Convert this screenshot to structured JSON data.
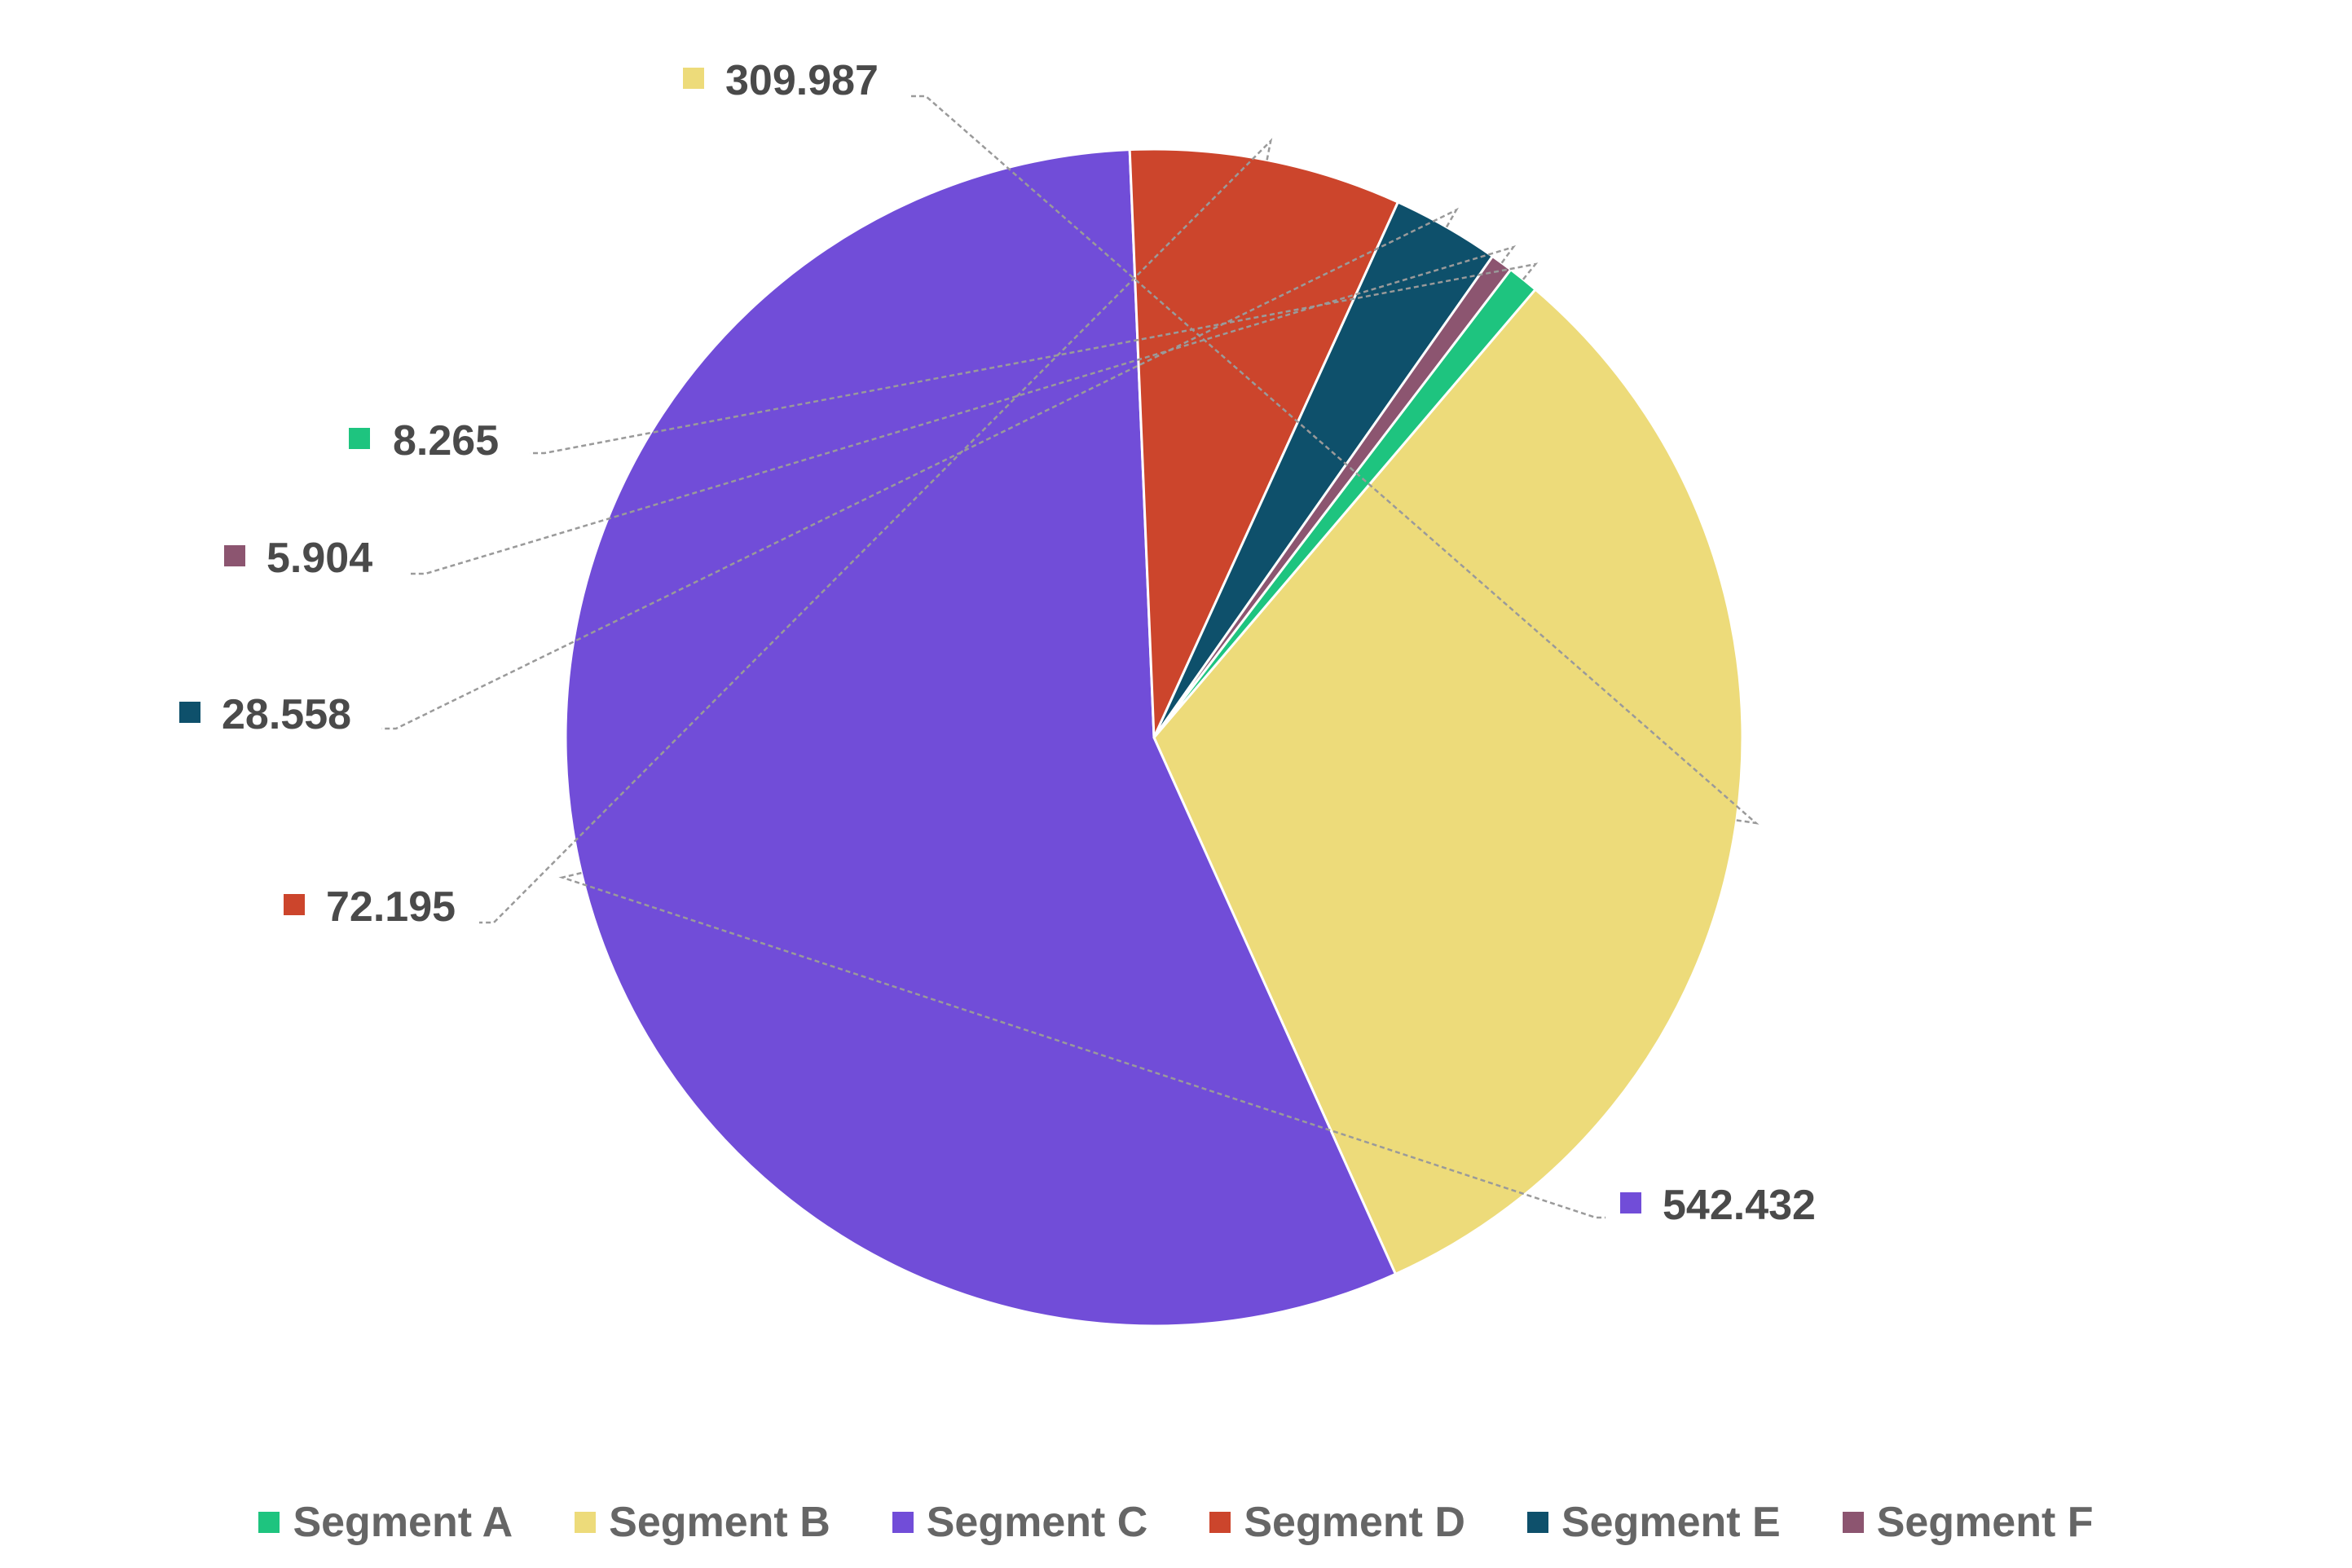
{
  "chart_data": {
    "type": "pie",
    "categories": [
      "Segment A",
      "Segment B",
      "Segment C",
      "Segment D",
      "Segment E",
      "Segment F"
    ],
    "values": [
      8.265,
      309.987,
      542.432,
      72.195,
      28.558,
      5.904
    ],
    "labels": [
      "8.265",
      "309.987",
      "542.432",
      "72.195",
      "28.558",
      "5.904"
    ],
    "colors": [
      "#1ec47f",
      "#eddb7a",
      "#714dd8",
      "#cc452c",
      "#0e506b",
      "#8c5570"
    ],
    "slice_order": [
      1,
      2,
      3,
      4,
      5,
      0
    ],
    "legend_position": "bottom",
    "title": ""
  }
}
